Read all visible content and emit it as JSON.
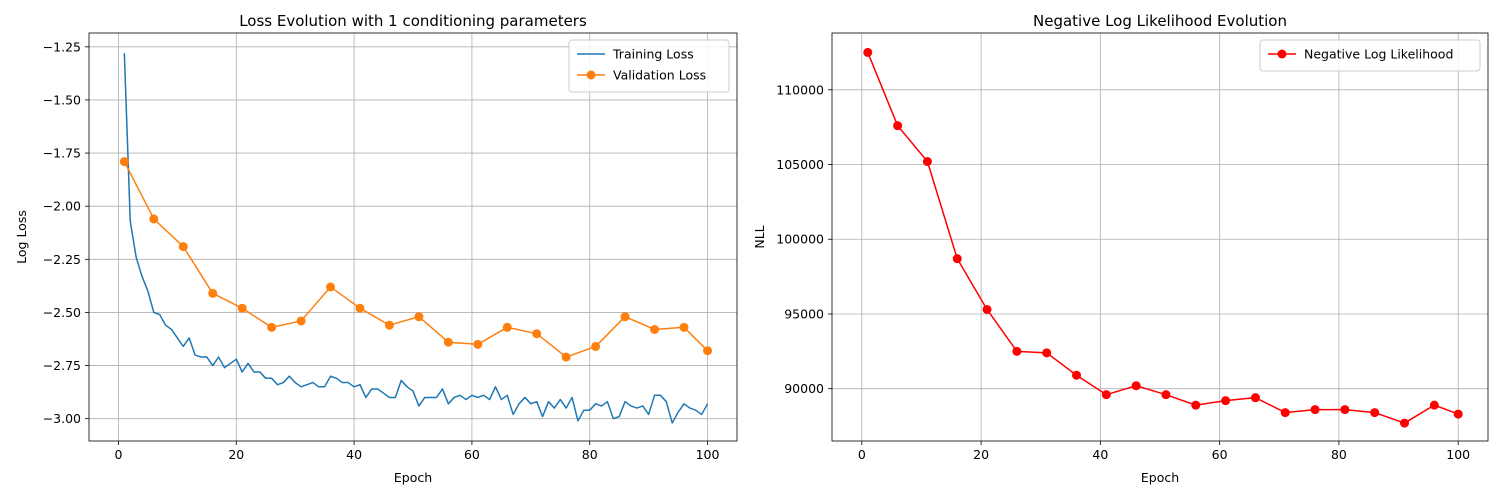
{
  "chart_data": [
    {
      "type": "line",
      "title": "Loss Evolution with 1 conditioning parameters",
      "xlabel": "Epoch",
      "ylabel": "Log Loss",
      "xlim": [
        -5,
        105
      ],
      "ylim": [
        -3.105,
        -1.185
      ],
      "xticks": [
        0,
        20,
        40,
        60,
        80,
        100
      ],
      "yticks": [
        -1.25,
        -1.5,
        -1.75,
        -2.0,
        -2.25,
        -2.5,
        -2.75,
        -3.0
      ],
      "ytick_labels": [
        "−1.25",
        "−1.50",
        "−1.75",
        "−2.00",
        "−2.25",
        "−2.50",
        "−2.75",
        "−3.00"
      ],
      "grid": true,
      "legend_position": "upper right",
      "series": [
        {
          "name": "Training Loss",
          "color": "#1f77b4",
          "marker": "none",
          "x": [
            1,
            2,
            3,
            4,
            5,
            6,
            7,
            8,
            9,
            10,
            11,
            12,
            13,
            14,
            15,
            16,
            17,
            18,
            19,
            20,
            21,
            22,
            23,
            24,
            25,
            26,
            27,
            28,
            29,
            30,
            31,
            32,
            33,
            34,
            35,
            36,
            37,
            38,
            39,
            40,
            41,
            42,
            43,
            44,
            45,
            46,
            47,
            48,
            49,
            50,
            51,
            52,
            53,
            54,
            55,
            56,
            57,
            58,
            59,
            60,
            61,
            62,
            63,
            64,
            65,
            66,
            67,
            68,
            69,
            70,
            71,
            72,
            73,
            74,
            75,
            76,
            77,
            78,
            79,
            80,
            81,
            82,
            83,
            84,
            85,
            86,
            87,
            88,
            89,
            90,
            91,
            92,
            93,
            94,
            95,
            96,
            97,
            98,
            99,
            100
          ],
          "values": [
            -1.28,
            -2.07,
            -2.24,
            -2.33,
            -2.4,
            -2.5,
            -2.51,
            -2.56,
            -2.58,
            -2.62,
            -2.66,
            -2.62,
            -2.7,
            -2.71,
            -2.71,
            -2.75,
            -2.71,
            -2.76,
            -2.74,
            -2.72,
            -2.78,
            -2.74,
            -2.78,
            -2.78,
            -2.81,
            -2.81,
            -2.84,
            -2.83,
            -2.8,
            -2.83,
            -2.85,
            -2.84,
            -2.83,
            -2.85,
            -2.85,
            -2.8,
            -2.81,
            -2.83,
            -2.83,
            -2.85,
            -2.84,
            -2.9,
            -2.86,
            -2.86,
            -2.88,
            -2.9,
            -2.9,
            -2.82,
            -2.85,
            -2.87,
            -2.94,
            -2.9,
            -2.9,
            -2.9,
            -2.86,
            -2.93,
            -2.9,
            -2.89,
            -2.91,
            -2.89,
            -2.9,
            -2.89,
            -2.91,
            -2.85,
            -2.91,
            -2.89,
            -2.98,
            -2.93,
            -2.9,
            -2.93,
            -2.92,
            -2.99,
            -2.92,
            -2.95,
            -2.91,
            -2.95,
            -2.9,
            -3.01,
            -2.96,
            -2.96,
            -2.93,
            -2.94,
            -2.92,
            -3.0,
            -2.99,
            -2.92,
            -2.94,
            -2.95,
            -2.94,
            -2.98,
            -2.89,
            -2.89,
            -2.92,
            -3.02,
            -2.97,
            -2.93,
            -2.95,
            -2.96,
            -2.98,
            -2.93
          ]
        },
        {
          "name": "Validation Loss",
          "color": "#ff7f0e",
          "marker": "circle",
          "x": [
            1,
            6,
            11,
            16,
            21,
            26,
            31,
            36,
            41,
            46,
            51,
            56,
            61,
            66,
            71,
            76,
            81,
            86,
            91,
            96,
            100
          ],
          "values": [
            -1.79,
            -2.06,
            -2.19,
            -2.41,
            -2.48,
            -2.57,
            -2.54,
            -2.38,
            -2.48,
            -2.56,
            -2.52,
            -2.64,
            -2.65,
            -2.57,
            -2.6,
            -2.71,
            -2.66,
            -2.52,
            -2.58,
            -2.57,
            -2.68
          ]
        }
      ]
    },
    {
      "type": "line",
      "title": "Negative Log Likelihood Evolution",
      "xlabel": "Epoch",
      "ylabel": "NLL",
      "xlim": [
        -5,
        105
      ],
      "ylim": [
        86500,
        113800
      ],
      "xticks": [
        0,
        20,
        40,
        60,
        80,
        100
      ],
      "yticks": [
        90000,
        95000,
        100000,
        105000,
        110000
      ],
      "ytick_labels": [
        "90000",
        "95000",
        "100000",
        "105000",
        "110000"
      ],
      "grid": true,
      "legend_position": "upper right",
      "series": [
        {
          "name": "Negative Log Likelihood",
          "color": "#ff0000",
          "marker": "circle",
          "x": [
            1,
            6,
            11,
            16,
            21,
            26,
            31,
            36,
            41,
            46,
            51,
            56,
            61,
            66,
            71,
            76,
            81,
            86,
            91,
            96,
            100
          ],
          "values": [
            112500,
            107600,
            105200,
            98700,
            95300,
            92500,
            92400,
            90900,
            89600,
            90200,
            89600,
            88900,
            89200,
            89400,
            88400,
            88600,
            88600,
            88400,
            87700,
            88900,
            88300
          ]
        }
      ]
    }
  ]
}
